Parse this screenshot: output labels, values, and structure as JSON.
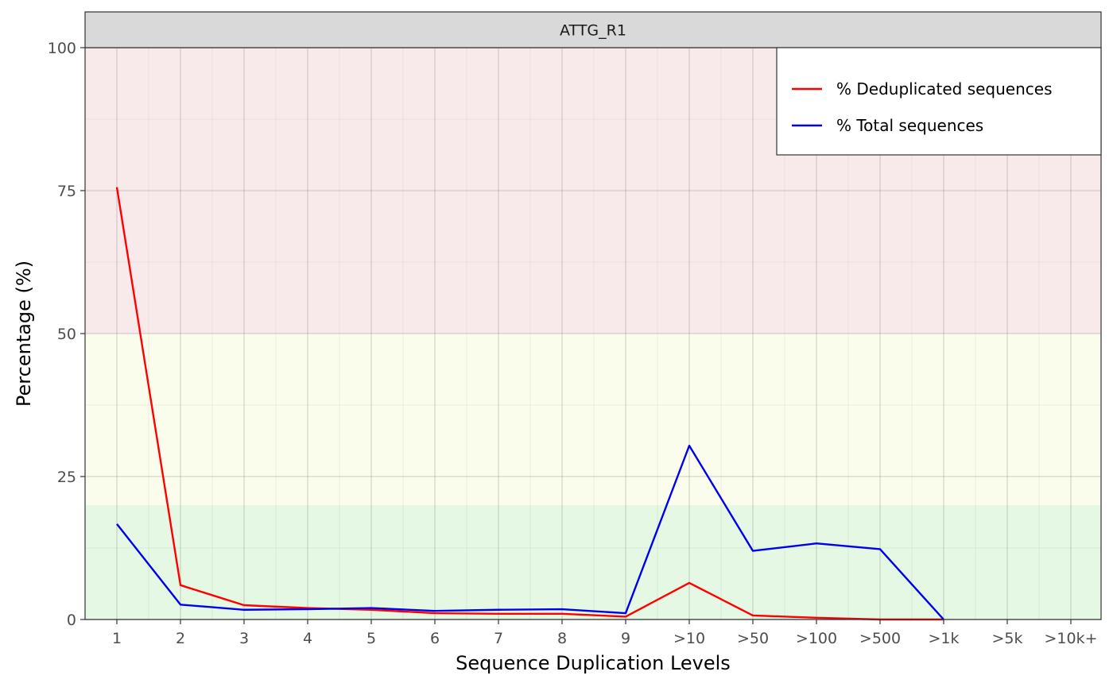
{
  "chart_data": {
    "type": "line",
    "facet_title": "ATTG_R1",
    "xlabel": "Sequence Duplication Levels",
    "ylabel": "Percentage (%)",
    "categories": [
      "1",
      "2",
      "3",
      "4",
      "5",
      "6",
      "7",
      "8",
      "9",
      ">10",
      ">50",
      ">100",
      ">500",
      ">1k",
      ">5k",
      ">10k+"
    ],
    "ylim": [
      0,
      100
    ],
    "yticks": [
      0,
      25,
      50,
      75,
      100
    ],
    "grid": true,
    "legend_position": "top-right",
    "background_bands": [
      {
        "from": 0,
        "to": 20,
        "color": "#e5f8e4"
      },
      {
        "from": 20,
        "to": 50,
        "color": "#fbfdec"
      },
      {
        "from": 50,
        "to": 100,
        "color": "#f8eaea"
      }
    ],
    "series": [
      {
        "name": "% Deduplicated sequences",
        "color": "#ff0000",
        "values": [
          75.6,
          6.0,
          2.5,
          2.0,
          1.7,
          1.1,
          1.0,
          1.0,
          0.5,
          6.4,
          0.7,
          0.3,
          0.0,
          0.0,
          null,
          null
        ]
      },
      {
        "name": "% Total sequences",
        "color": "#0000ee",
        "values": [
          16.7,
          2.6,
          1.7,
          1.8,
          2.0,
          1.5,
          1.7,
          1.8,
          1.1,
          30.4,
          12.0,
          13.3,
          12.3,
          0.0,
          null,
          null
        ]
      }
    ]
  }
}
